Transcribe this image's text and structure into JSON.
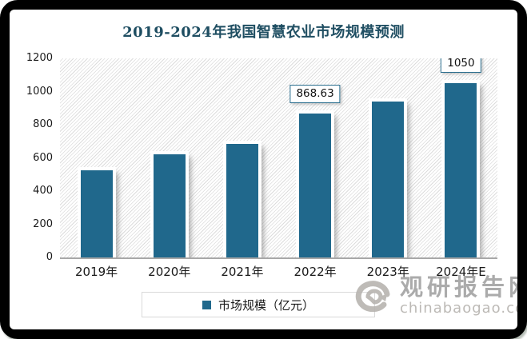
{
  "frame": {
    "background": "#000000"
  },
  "chart_data": {
    "type": "bar",
    "title": "2019-2024年我国智慧农业市场规模预测",
    "title_color": "#1F4E62",
    "categories": [
      "2019年",
      "2020年",
      "2021年",
      "2022年",
      "2023年",
      "2024年E"
    ],
    "series": [
      {
        "name": "市场规模（亿元）",
        "values": [
          525,
          620,
          685,
          868.63,
          940,
          1050
        ]
      }
    ],
    "data_labels": [
      null,
      null,
      null,
      "868.63",
      null,
      "1050"
    ],
    "xlabel": "",
    "ylabel": "",
    "ylim": [
      0,
      1200
    ],
    "yticks": [
      1200,
      1000,
      800,
      600,
      400,
      200,
      0
    ],
    "grid": false,
    "plot_background": "diagonal-hatch",
    "bar_color": "#20688C",
    "label_box_border_color": "#2A6E8E",
    "legend": {
      "label": "市场规模（亿元）",
      "position": "bottom-center"
    }
  },
  "watermark": {
    "brand": "观研报告网",
    "domain": "chinabaogao.com",
    "logo": "swirl-logo",
    "color": "#a3a3a3"
  }
}
